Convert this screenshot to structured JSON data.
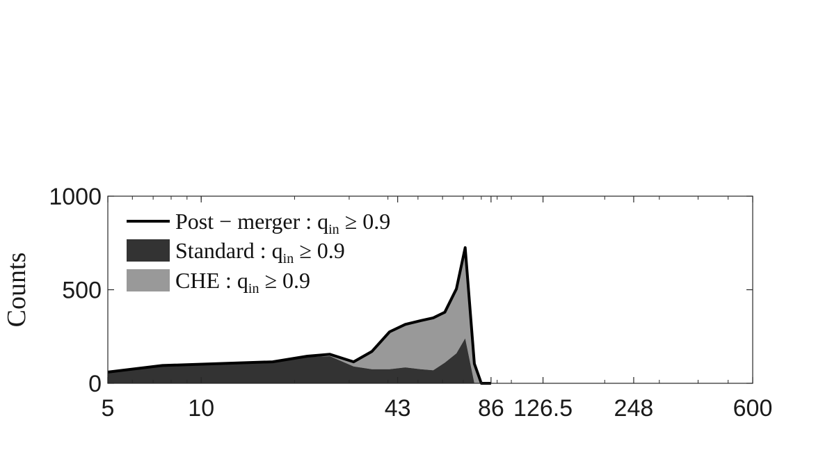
{
  "chart_data": {
    "type": "area",
    "ylabel": "Counts",
    "xlabel": "",
    "xscale": "log",
    "xlim": [
      5,
      600
    ],
    "ylim": [
      0,
      1000
    ],
    "x_ticks": [
      5,
      10,
      43,
      86,
      126.5,
      248,
      600
    ],
    "x_tick_labels": [
      "5",
      "10",
      "43",
      "86",
      "126.5",
      "248",
      "600"
    ],
    "y_ticks": [
      0,
      500,
      1000
    ],
    "y_tick_labels": [
      "0",
      "500",
      "1000"
    ],
    "grid": false,
    "legend_position": "top-left",
    "series": [
      {
        "name": "Post − merger : q_in ≥ 0.9",
        "label_main": "Post − merger : q",
        "label_sub": "in",
        "label_rest": " ≥ 0.9",
        "style": "line",
        "color": "#000000",
        "points": [
          [
            5,
            60
          ],
          [
            7.5,
            95
          ],
          [
            17,
            115
          ],
          [
            22,
            145
          ],
          [
            26,
            155
          ],
          [
            31,
            115
          ],
          [
            35.5,
            170
          ],
          [
            40.5,
            275
          ],
          [
            45.5,
            315
          ],
          [
            51,
            335
          ],
          [
            56,
            350
          ],
          [
            61,
            380
          ],
          [
            66.5,
            505
          ],
          [
            71,
            725
          ],
          [
            76,
            105
          ],
          [
            80,
            0
          ],
          [
            86,
            0
          ]
        ]
      },
      {
        "name": "Standard : q_in ≥ 0.9",
        "label_main": "Standard : q",
        "label_sub": "in",
        "label_rest": " ≥ 0.9",
        "style": "fill",
        "color": "#333333",
        "points": [
          [
            5,
            60
          ],
          [
            7.5,
            95
          ],
          [
            17,
            115
          ],
          [
            22,
            140
          ],
          [
            26,
            145
          ],
          [
            31,
            90
          ],
          [
            35.5,
            75
          ],
          [
            40.5,
            75
          ],
          [
            45.5,
            85
          ],
          [
            51,
            75
          ],
          [
            56,
            70
          ],
          [
            61,
            110
          ],
          [
            66.5,
            160
          ],
          [
            71,
            240
          ],
          [
            76,
            0
          ],
          [
            80,
            0
          ]
        ]
      },
      {
        "name": "CHE : q_in ≥ 0.9",
        "label_main": "CHE : q",
        "label_sub": "in",
        "label_rest": " ≥ 0.9",
        "style": "fill",
        "color": "#999999",
        "points": [
          [
            5,
            0
          ],
          [
            7.5,
            0
          ],
          [
            17,
            0
          ],
          [
            22,
            5
          ],
          [
            26,
            10
          ],
          [
            31,
            25
          ],
          [
            35.5,
            95
          ],
          [
            40.5,
            200
          ],
          [
            45.5,
            230
          ],
          [
            51,
            260
          ],
          [
            56,
            280
          ],
          [
            61,
            270
          ],
          [
            66.5,
            345
          ],
          [
            71,
            485
          ],
          [
            76,
            105
          ],
          [
            80,
            0
          ],
          [
            86,
            0
          ]
        ]
      }
    ]
  }
}
